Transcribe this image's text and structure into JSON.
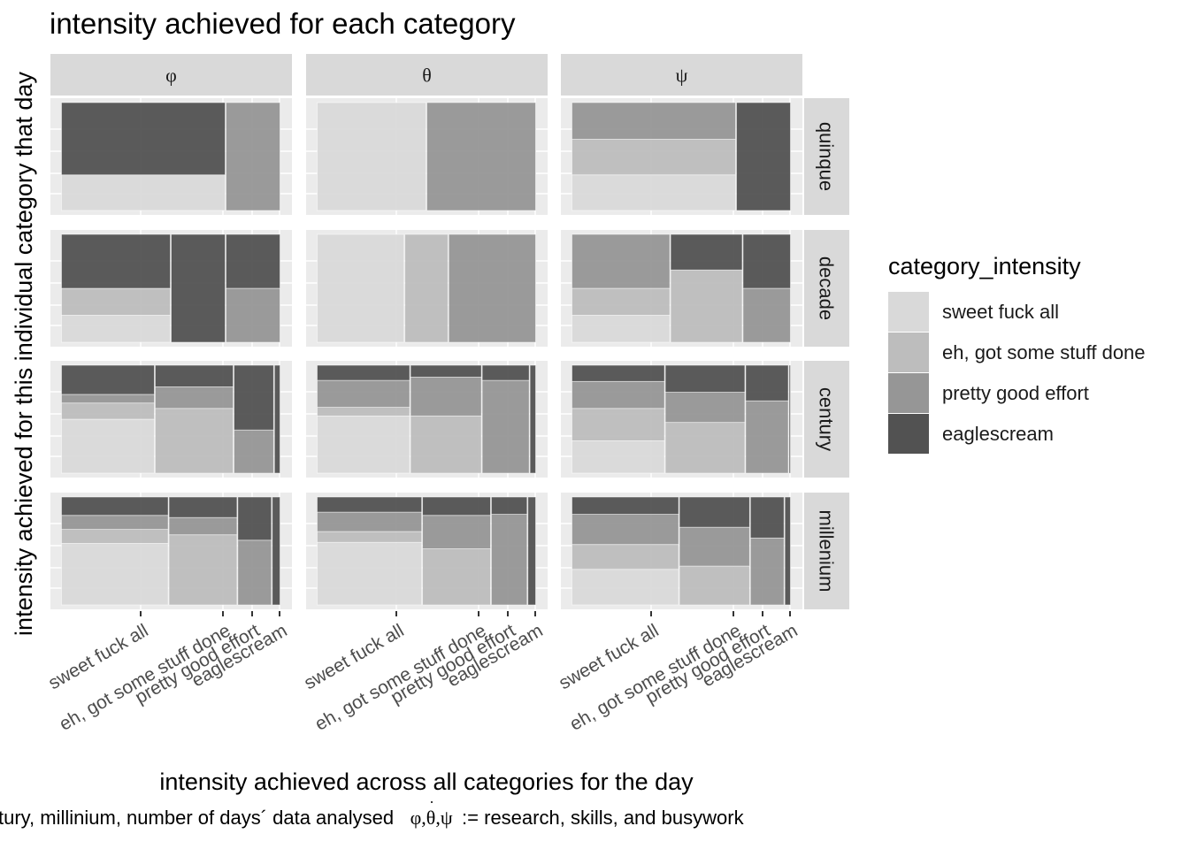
{
  "title": "intensity achieved for each category",
  "legend_title": "category_intensity",
  "caption": {
    "left": "tury, millinium, number of days´ data analysed",
    "symbols": "φ,θ,ψ",
    "right": ":= research, skills, and busywork"
  },
  "chart_data": {
    "type": "mosaic",
    "title": "intensity achieved for each category",
    "xlabel": "intensity achieved across all categories for the day",
    "ylabel": "intensity achieved for this individual category that day",
    "facet_cols": [
      "φ",
      "θ",
      "ψ"
    ],
    "facet_rows": [
      "quinque",
      "decade",
      "century",
      "millenium"
    ],
    "levels": [
      "sweet fuck all",
      "eh, got some stuff done",
      "pretty good effort",
      "eaglescream"
    ],
    "colors": [
      "#d9d9d9",
      "#bdbdbd",
      "#969696",
      "#525252"
    ],
    "x_ticks": [
      "sweet fuck all",
      "eh, got some stuff done",
      "pretty good effort",
      "eaglescream"
    ],
    "grid": true,
    "legend_position": "right",
    "panels": [
      {
        "row": "quinque",
        "col": "φ",
        "x_widths": [
          0.75,
          0,
          0.25,
          0
        ],
        "y_fractions": [
          [
            0.33,
            0,
            0,
            0.67
          ],
          [
            0,
            0,
            0,
            0
          ],
          [
            0,
            0,
            1.0,
            0
          ],
          [
            0,
            0,
            0,
            0
          ]
        ]
      },
      {
        "row": "quinque",
        "col": "θ",
        "x_widths": [
          0.5,
          0,
          0.5,
          0
        ],
        "y_fractions": [
          [
            1.0,
            0,
            0,
            0
          ],
          [
            0,
            0,
            0,
            0
          ],
          [
            0,
            0,
            1.0,
            0
          ],
          [
            0,
            0,
            0,
            0
          ]
        ]
      },
      {
        "row": "quinque",
        "col": "ψ",
        "x_widths": [
          0.75,
          0,
          0,
          0.25
        ],
        "y_fractions": [
          [
            0.33,
            0.33,
            0.34,
            0
          ],
          [
            0,
            0,
            0,
            0
          ],
          [
            0,
            0,
            0,
            0
          ],
          [
            0,
            0,
            0,
            1.0
          ]
        ]
      },
      {
        "row": "decade",
        "col": "φ",
        "x_widths": [
          0.5,
          0,
          0.25,
          0.25
        ],
        "y_fractions": [
          [
            0.25,
            0.25,
            0,
            0.5
          ],
          [
            0,
            0,
            0,
            0
          ],
          [
            0,
            0,
            0,
            1.0
          ],
          [
            0,
            0,
            0.5,
            0.5
          ]
        ]
      },
      {
        "row": "decade",
        "col": "θ",
        "x_widths": [
          0.4,
          0.2,
          0.4,
          0
        ],
        "y_fractions": [
          [
            1.0,
            0,
            0,
            0
          ],
          [
            0,
            1.0,
            0,
            0
          ],
          [
            0,
            0,
            1.0,
            0
          ],
          [
            0,
            0,
            0,
            0
          ]
        ]
      },
      {
        "row": "decade",
        "col": "ψ",
        "x_widths": [
          0.45,
          0.33,
          0.22,
          0
        ],
        "y_fractions": [
          [
            0.25,
            0.25,
            0.5,
            0
          ],
          [
            0,
            0.67,
            0,
            0.33
          ],
          [
            0,
            0,
            0.5,
            0.5
          ],
          [
            0,
            0,
            0,
            0
          ]
        ]
      },
      {
        "row": "century",
        "col": "φ",
        "x_widths": [
          0.44,
          0.37,
          0.19,
          0.03
        ],
        "y_fractions": [
          [
            0.5,
            0.15,
            0.08,
            0.27
          ],
          [
            0,
            0.6,
            0.2,
            0.2
          ],
          [
            0,
            0,
            0.4,
            0.6
          ],
          [
            0,
            0,
            0,
            1.0
          ]
        ]
      },
      {
        "row": "century",
        "col": "θ",
        "x_widths": [
          0.43,
          0.33,
          0.22,
          0.03
        ],
        "y_fractions": [
          [
            0.53,
            0.08,
            0.25,
            0.14
          ],
          [
            0,
            0.53,
            0.36,
            0.11
          ],
          [
            0,
            0,
            0.86,
            0.14
          ],
          [
            0,
            0,
            0,
            1.0
          ]
        ]
      },
      {
        "row": "century",
        "col": "ψ",
        "x_widths": [
          0.43,
          0.37,
          0.2,
          0.01
        ],
        "y_fractions": [
          [
            0.3,
            0.3,
            0.25,
            0.15
          ],
          [
            0,
            0.47,
            0.28,
            0.25
          ],
          [
            0,
            0,
            0.67,
            0.33
          ],
          [
            0,
            0,
            0,
            1.0
          ]
        ]
      },
      {
        "row": "millenium",
        "col": "φ",
        "x_widths": [
          0.5,
          0.32,
          0.16,
          0.04
        ],
        "y_fractions": [
          [
            0.57,
            0.13,
            0.13,
            0.17
          ],
          [
            0,
            0.65,
            0.16,
            0.19
          ],
          [
            0,
            0,
            0.6,
            0.4
          ],
          [
            0,
            0,
            0,
            1.0
          ]
        ]
      },
      {
        "row": "millenium",
        "col": "θ",
        "x_widths": [
          0.49,
          0.32,
          0.17,
          0.04
        ],
        "y_fractions": [
          [
            0.58,
            0.1,
            0.18,
            0.14
          ],
          [
            0,
            0.52,
            0.31,
            0.17
          ],
          [
            0,
            0,
            0.84,
            0.16
          ],
          [
            0,
            0,
            0,
            1.0
          ]
        ]
      },
      {
        "row": "millenium",
        "col": "ψ",
        "x_widths": [
          0.5,
          0.33,
          0.16,
          0.03
        ],
        "y_fractions": [
          [
            0.33,
            0.23,
            0.28,
            0.16
          ],
          [
            0,
            0.36,
            0.36,
            0.28
          ],
          [
            0,
            0,
            0.62,
            0.38
          ],
          [
            0,
            0,
            0,
            1.0
          ]
        ]
      }
    ]
  }
}
